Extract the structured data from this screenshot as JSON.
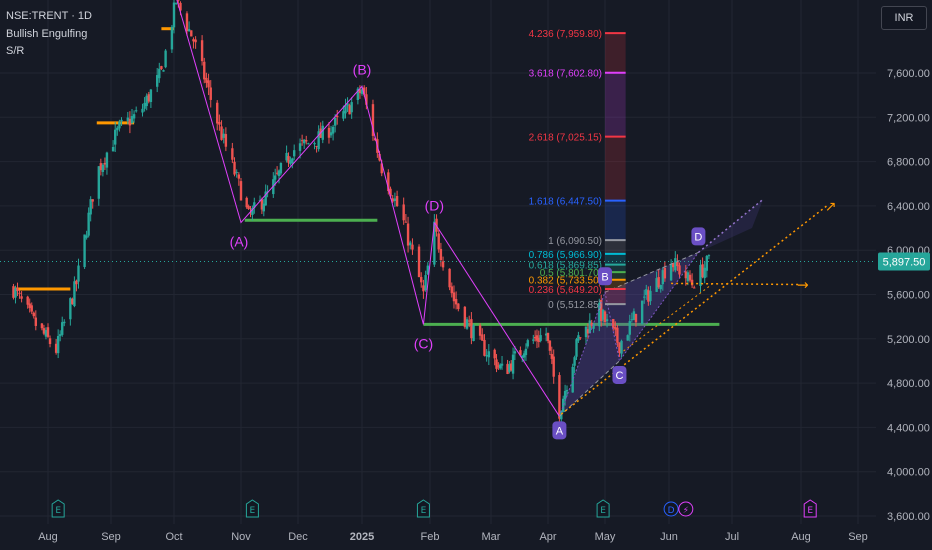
{
  "header": {
    "symbol_line": "NSE:TRENT · 1D",
    "indicators": [
      "Bullish Engulfing",
      "S/R"
    ]
  },
  "currency_button": "INR",
  "last_price_label": "5,897.50",
  "colors": {
    "bg": "#161a25",
    "grid": "#222632",
    "up": "#26a69a",
    "down": "#ef5350",
    "harmonic": "#e040fb",
    "support": "#4caf50",
    "resistance": "#ff9800",
    "pattern_fill": "#5b4aa8"
  },
  "chart_data": {
    "type": "candlestick",
    "y_ticks": [
      "7,600.00",
      "7,200.00",
      "6,800.00",
      "6,400.00",
      "6,000.00",
      "5,600.00",
      "5,200.00",
      "4,800.00",
      "4,400.00",
      "4,000.00",
      "3,600.00"
    ],
    "y_tick_values": [
      7600,
      7200,
      6800,
      6400,
      6000,
      5600,
      5200,
      4800,
      4400,
      4000,
      3600
    ],
    "x_ticks": [
      "Aug",
      "Sep",
      "Oct",
      "Nov",
      "Dec",
      "2025",
      "Feb",
      "Mar",
      "Apr",
      "May",
      "Jun",
      "Jul",
      "Aug",
      "Sep"
    ],
    "x_tick_dates": [
      "2024-08-01",
      "2024-09-01",
      "2024-10-01",
      "2024-11-01",
      "2024-12-01",
      "2025-01-01",
      "2025-02-01",
      "2025-03-01",
      "2025-04-01",
      "2025-05-01",
      "2025-06-01",
      "2025-07-01",
      "2025-08-01",
      "2025-09-01"
    ],
    "last_price": 5897.5,
    "price_path": [
      {
        "date": "2024-07-15",
        "close": 5650
      },
      {
        "date": "2024-07-25",
        "close": 5350
      },
      {
        "date": "2024-08-05",
        "close": 5100
      },
      {
        "date": "2024-08-15",
        "close": 5700
      },
      {
        "date": "2024-08-25",
        "close": 6700
      },
      {
        "date": "2024-09-05",
        "close": 7100
      },
      {
        "date": "2024-09-15",
        "close": 7250
      },
      {
        "date": "2024-09-25",
        "close": 7600
      },
      {
        "date": "2024-10-02",
        "close": 8250
      },
      {
        "date": "2024-10-10",
        "close": 7900
      },
      {
        "date": "2024-10-22",
        "close": 7100
      },
      {
        "date": "2024-11-05",
        "close": 6300
      },
      {
        "date": "2024-11-15",
        "close": 6500
      },
      {
        "date": "2024-11-28",
        "close": 6900
      },
      {
        "date": "2024-12-10",
        "close": 7000
      },
      {
        "date": "2024-12-20",
        "close": 7150
      },
      {
        "date": "2025-01-01",
        "close": 7450
      },
      {
        "date": "2025-01-10",
        "close": 6750
      },
      {
        "date": "2025-01-20",
        "close": 6250
      },
      {
        "date": "2025-01-29",
        "close": 5600
      },
      {
        "date": "2025-02-03",
        "close": 6200
      },
      {
        "date": "2025-02-12",
        "close": 5550
      },
      {
        "date": "2025-02-24",
        "close": 5150
      },
      {
        "date": "2025-03-08",
        "close": 4900
      },
      {
        "date": "2025-03-20",
        "close": 5150
      },
      {
        "date": "2025-03-31",
        "close": 5250
      },
      {
        "date": "2025-04-07",
        "close": 4550
      },
      {
        "date": "2025-04-17",
        "close": 5200
      },
      {
        "date": "2025-04-28",
        "close": 5450
      },
      {
        "date": "2025-05-08",
        "close": 5150
      },
      {
        "date": "2025-05-20",
        "close": 5550
      },
      {
        "date": "2025-06-02",
        "close": 5900
      },
      {
        "date": "2025-06-12",
        "close": 5700
      },
      {
        "date": "2025-06-20",
        "close": 5900
      }
    ],
    "harmonic_old": {
      "points": [
        {
          "label": "(A)",
          "date": "2024-11-01",
          "price": 6250
        },
        {
          "label": "(B)",
          "date": "2025-01-01",
          "price": 7480
        },
        {
          "label": "(C)",
          "date": "2025-01-29",
          "price": 5330
        },
        {
          "label": "(D)",
          "date": "2025-02-03",
          "price": 6250
        }
      ],
      "extra_leg_start": {
        "date": "2024-10-01",
        "price": 8350
      },
      "extra_leg_end": {
        "date": "2025-04-07",
        "price": 4500
      }
    },
    "harmonic_new": {
      "points": [
        {
          "label": "A",
          "date": "2025-04-07",
          "price": 4500
        },
        {
          "label": "B",
          "date": "2025-05-01",
          "price": 5620
        },
        {
          "label": "C",
          "date": "2025-05-08",
          "price": 5000
        },
        {
          "label": "D",
          "date": "2025-06-15",
          "price": 5980
        }
      ]
    },
    "fib_levels": [
      {
        "label": "4.236 (7,959.80)",
        "value": 7959.8,
        "color": "#f23645"
      },
      {
        "label": "3.618 (7,602.80)",
        "value": 7602.8,
        "color": "#e040fb"
      },
      {
        "label": "2.618 (7,025.15)",
        "value": 7025.15,
        "color": "#f23645"
      },
      {
        "label": "1.618 (6,447.50)",
        "value": 6447.5,
        "color": "#2962ff"
      },
      {
        "label": "1 (6,090.50)",
        "value": 6090.5,
        "color": "#9598a1"
      },
      {
        "label": "0.786 (5,966.90)",
        "value": 5966.9,
        "color": "#00bcd4"
      },
      {
        "label": "0.618 (5,869.85)",
        "value": 5869.85,
        "color": "#26a69a"
      },
      {
        "label": "0.5 (5,801.70)",
        "value": 5801.7,
        "color": "#4caf50"
      },
      {
        "label": "0.382 (5,733.50)",
        "value": 5733.5,
        "color": "#ff9800"
      },
      {
        "label": "0.236 (5,649.20)",
        "value": 5649.2,
        "color": "#f23645"
      },
      {
        "label": "0 (5,512.85)",
        "value": 5512.85,
        "color": "#9598a1"
      }
    ],
    "support_levels": [
      {
        "price": 6270,
        "from": "2024-11-03",
        "to": "2025-01-08",
        "color": "#4caf50"
      },
      {
        "price": 5330,
        "from": "2025-01-29",
        "to": "2025-06-25",
        "color": "#4caf50"
      },
      {
        "price": 5650,
        "from": "2024-07-15",
        "to": "2024-08-12",
        "color": "#ff9800"
      },
      {
        "price": 7150,
        "from": "2024-08-25",
        "to": "2024-09-12",
        "color": "#ff9800"
      },
      {
        "price": 8000,
        "from": "2024-09-25",
        "to": "2024-10-01",
        "color": "#ff9800"
      }
    ],
    "event_markers": [
      {
        "label": "E",
        "date": "2024-08-06",
        "color": "#26a69a"
      },
      {
        "label": "E",
        "date": "2024-11-07",
        "color": "#26a69a"
      },
      {
        "label": "E",
        "date": "2025-01-29",
        "color": "#26a69a"
      },
      {
        "label": "E",
        "date": "2025-04-30",
        "color": "#26a69a"
      },
      {
        "label": "D",
        "date": "2025-06-02",
        "color": "#2962ff"
      },
      {
        "label": "⚡",
        "date": "2025-06-09",
        "color": "#e040fb"
      },
      {
        "label": "E",
        "date": "2025-08-06",
        "color": "#e040fb"
      }
    ]
  }
}
